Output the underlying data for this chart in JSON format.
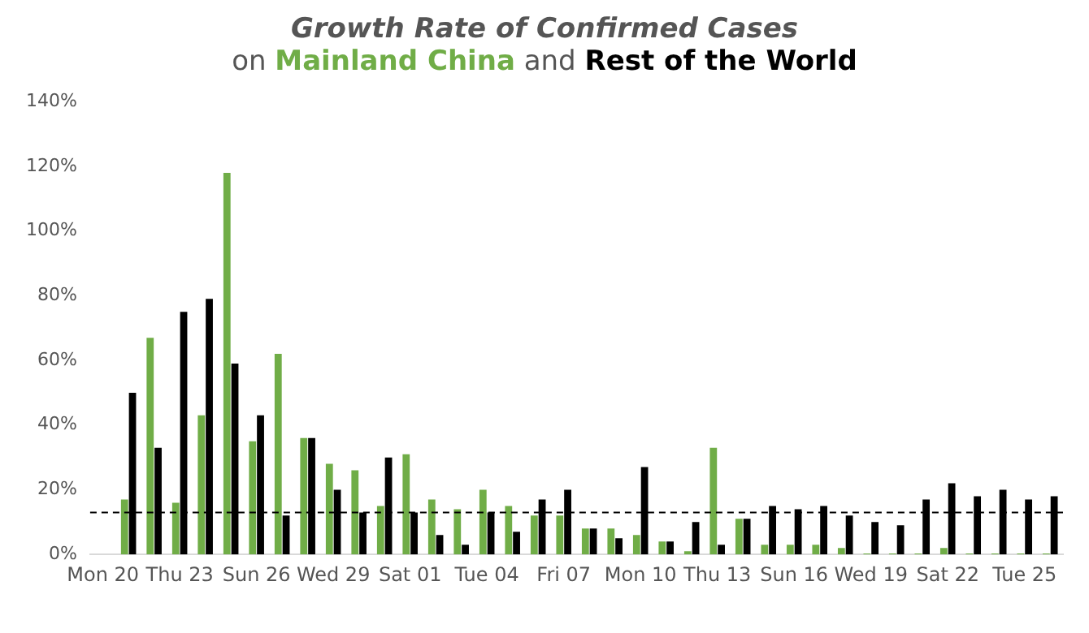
{
  "chart_data": {
    "type": "bar",
    "title": "Growth Rate of Confirmed Cases",
    "annotations": [
      "on",
      "and"
    ],
    "categories": [
      "Mon 20",
      null,
      null,
      "Thu 23",
      null,
      null,
      "Sun 26",
      null,
      null,
      "Wed 29",
      null,
      null,
      "Sat 01",
      null,
      null,
      "Tue 04",
      null,
      null,
      "Fri 07",
      null,
      null,
      "Mon 10",
      null,
      null,
      "Thu 13",
      null,
      null,
      "Sun 16",
      null,
      null,
      "Wed 19",
      null,
      null,
      "Sat 22",
      null,
      null,
      "Tue 25",
      null
    ],
    "series": [
      {
        "name": "Mainland China",
        "color": "#70ad47",
        "values": [
          null,
          17,
          67,
          16,
          43,
          118,
          35,
          62,
          36,
          28,
          26,
          15,
          31,
          17,
          14,
          20,
          15,
          12,
          12,
          8,
          8,
          6,
          4,
          1,
          33,
          11,
          3,
          3,
          3,
          2,
          0.3,
          0.3,
          0.3,
          2,
          0.3,
          0.3,
          0.3,
          0.3
        ]
      },
      {
        "name": "Rest of the World",
        "color": "#000000",
        "values": [
          null,
          50,
          33,
          75,
          79,
          59,
          43,
          12,
          36,
          20,
          13,
          30,
          13,
          6,
          3,
          13,
          7,
          17,
          20,
          8,
          5,
          27,
          4,
          10,
          3,
          11,
          15,
          14,
          15,
          12,
          10,
          9,
          17,
          22,
          18,
          20,
          17,
          18
        ]
      }
    ],
    "ylim": [
      0,
      140
    ],
    "yticks": [
      {
        "value": 0,
        "label": "0%"
      },
      {
        "value": 20,
        "label": "20%"
      },
      {
        "value": 40,
        "label": "40%"
      },
      {
        "value": 60,
        "label": "60%"
      },
      {
        "value": 80,
        "label": "80%"
      },
      {
        "value": 100,
        "label": "100%"
      },
      {
        "value": 120,
        "label": "120%"
      },
      {
        "value": 140,
        "label": "140%"
      }
    ],
    "ref_lines": [
      {
        "axis": "y",
        "value": 13,
        "color": "#000000",
        "line_style": "dashed"
      }
    ],
    "grid": false,
    "legend": false
  }
}
